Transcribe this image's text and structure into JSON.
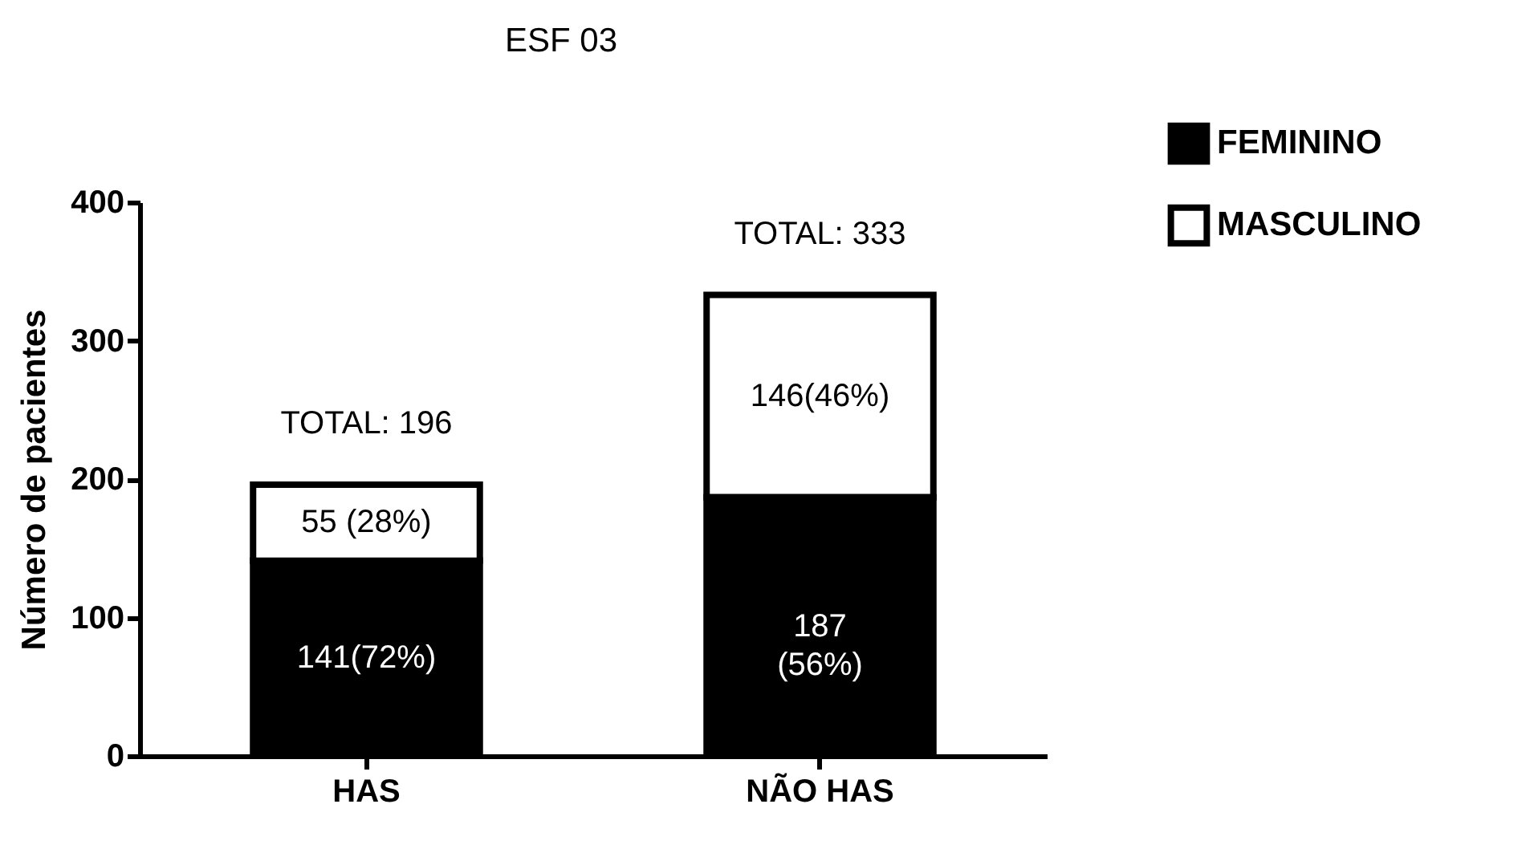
{
  "chart_data": {
    "type": "bar",
    "title": "ESF 03",
    "ylabel": "Número de pacientes",
    "categories": [
      "HAS",
      "NÃO HAS"
    ],
    "series": [
      {
        "name": "FEMININO",
        "color": "#000000",
        "values": [
          141,
          187
        ],
        "value_labels": [
          "141(72%)",
          "187\n(56%)"
        ]
      },
      {
        "name": "MASCULINO",
        "color": "#ffffff",
        "values": [
          55,
          146
        ],
        "value_labels": [
          "55 (28%)",
          "146(46%)"
        ]
      }
    ],
    "stacked": true,
    "totals": [
      "TOTAL: 196",
      "TOTAL: 333"
    ],
    "ylim": [
      0,
      400
    ],
    "yticks": [
      0,
      100,
      200,
      300,
      400
    ],
    "grid": false,
    "legend": "top right"
  }
}
